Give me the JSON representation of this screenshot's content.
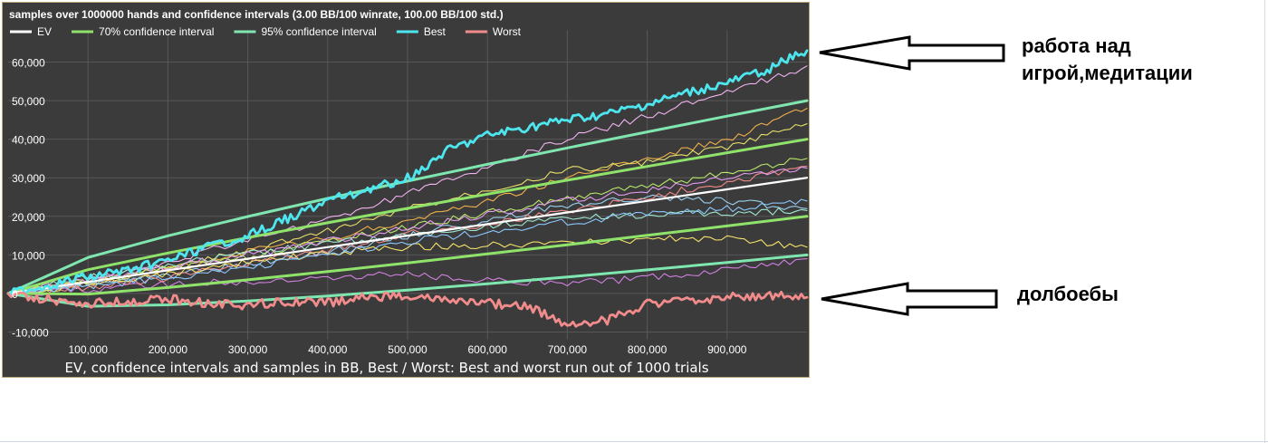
{
  "chart_data": {
    "type": "line",
    "title": "samples over 1000000 hands and confidence intervals (3.00 BB/100 winrate, 100.00 BB/100 std.)",
    "subtitle": "EV, confidence intervals and samples in BB, Best / Worst: Best and worst run out of 1000 trials",
    "xlabel": "",
    "ylabel": "",
    "xlim": [
      0,
      1000000
    ],
    "ylim": [
      -12000,
      66000
    ],
    "x_ticks": [
      "100,000",
      "200,000",
      "300,000",
      "400,000",
      "500,000",
      "600,000",
      "700,000",
      "800,000",
      "900,000"
    ],
    "y_ticks": [
      "-10,000",
      "0",
      "10,000",
      "20,000",
      "30,000",
      "40,000",
      "50,000",
      "60,000"
    ],
    "grid": true,
    "legend_position": "top-left",
    "winrate_bb_per_100": 3.0,
    "std_bb_per_100": 100.0,
    "legend": [
      {
        "name": "EV",
        "color": "#ffffff"
      },
      {
        "name": "70% confidence interval",
        "color": "#8fe36a"
      },
      {
        "name": "95% confidence interval",
        "color": "#7fe6b0"
      },
      {
        "name": "Best",
        "color": "#4de6ef"
      },
      {
        "name": "Worst",
        "color": "#f28c8c"
      }
    ],
    "series": [
      {
        "name": "EV",
        "x": [
          0,
          100000,
          200000,
          300000,
          400000,
          500000,
          600000,
          700000,
          800000,
          900000,
          1000000
        ],
        "values": [
          0,
          3000,
          6000,
          9000,
          12000,
          15000,
          18000,
          21000,
          24000,
          27000,
          30000
        ]
      },
      {
        "name": "70% confidence interval",
        "x": [
          0,
          100000,
          200000,
          300000,
          400000,
          500000,
          600000,
          700000,
          800000,
          900000,
          1000000
        ],
        "values": [
          0,
          6162,
          10472,
          14477,
          18325,
          22071,
          25746,
          29368,
          32944,
          36487,
          40000
        ]
      },
      {
        "name": "70% confidence interval",
        "x": [
          0,
          100000,
          200000,
          300000,
          400000,
          500000,
          600000,
          700000,
          800000,
          900000,
          1000000
        ],
        "values": [
          0,
          -162,
          1528,
          3523,
          5675,
          7929,
          10254,
          12632,
          15056,
          17513,
          20000
        ]
      },
      {
        "name": "95% confidence interval",
        "x": [
          0,
          100000,
          200000,
          300000,
          400000,
          500000,
          600000,
          700000,
          800000,
          900000,
          1000000
        ],
        "values": [
          0,
          9324,
          14944,
          19954,
          24650,
          29142,
          33492,
          37736,
          41888,
          45974,
          50000
        ]
      },
      {
        "name": "95% confidence interval",
        "x": [
          0,
          100000,
          200000,
          300000,
          400000,
          500000,
          600000,
          700000,
          800000,
          900000,
          1000000
        ],
        "values": [
          0,
          -3324,
          -2944,
          -1954,
          -650,
          858,
          2508,
          4264,
          6112,
          8026,
          10000
        ]
      },
      {
        "name": "Best",
        "x": [
          0,
          50000,
          100000,
          150000,
          200000,
          250000,
          300000,
          350000,
          400000,
          450000,
          500000,
          550000,
          600000,
          650000,
          700000,
          750000,
          800000,
          850000,
          900000,
          950000,
          1000000
        ],
        "values": [
          0,
          2000,
          4500,
          6000,
          8500,
          12000,
          15000,
          19500,
          24000,
          27000,
          30000,
          37000,
          41000,
          43000,
          45000,
          46500,
          49000,
          52000,
          54500,
          58000,
          63000
        ]
      },
      {
        "name": "Worst",
        "x": [
          0,
          50000,
          100000,
          150000,
          200000,
          250000,
          300000,
          350000,
          400000,
          450000,
          500000,
          550000,
          600000,
          650000,
          700000,
          750000,
          800000,
          850000,
          900000,
          950000,
          1000000
        ],
        "values": [
          0,
          -1500,
          -2500,
          -2000,
          -1500,
          -2500,
          -3000,
          -2000,
          -2500,
          -1000,
          -500,
          -2000,
          -2500,
          -3500,
          -8000,
          -7000,
          -2500,
          -2000,
          -1000,
          -500,
          -1000
        ]
      },
      {
        "name": "",
        "color": "#f2b3f0",
        "x": [
          0,
          100000,
          200000,
          300000,
          400000,
          500000,
          600000,
          700000,
          800000,
          900000,
          1000000
        ],
        "values": [
          0,
          3500,
          8000,
          14000,
          19000,
          26000,
          33000,
          40000,
          46000,
          52000,
          59000
        ]
      },
      {
        "name": "",
        "color": "#f0b04a",
        "x": [
          0,
          100000,
          200000,
          300000,
          400000,
          500000,
          600000,
          700000,
          800000,
          900000,
          1000000
        ],
        "values": [
          0,
          3000,
          6000,
          11000,
          14000,
          19000,
          24000,
          30000,
          35000,
          40000,
          48000
        ]
      },
      {
        "name": "",
        "color": "#e8e06a",
        "x": [
          0,
          100000,
          200000,
          300000,
          400000,
          500000,
          600000,
          700000,
          800000,
          900000,
          1000000
        ],
        "values": [
          0,
          2500,
          7000,
          11000,
          16000,
          22000,
          27000,
          32000,
          34000,
          38000,
          44000
        ]
      },
      {
        "name": "",
        "color": "#b9e86a",
        "x": [
          0,
          100000,
          200000,
          300000,
          400000,
          500000,
          600000,
          700000,
          800000,
          900000,
          1000000
        ],
        "values": [
          0,
          3000,
          6500,
          9500,
          13500,
          17000,
          21000,
          24500,
          28000,
          31000,
          35000
        ]
      },
      {
        "name": "",
        "color": "#9ad0f0",
        "x": [
          0,
          100000,
          200000,
          300000,
          400000,
          500000,
          600000,
          700000,
          800000,
          900000,
          1000000
        ],
        "values": [
          0,
          2000,
          4500,
          7500,
          11000,
          15000,
          19000,
          23000,
          25000,
          24000,
          22000
        ]
      },
      {
        "name": "",
        "color": "#d080e0",
        "x": [
          0,
          100000,
          200000,
          300000,
          400000,
          500000,
          600000,
          700000,
          800000,
          900000,
          1000000
        ],
        "values": [
          0,
          1000,
          2500,
          3000,
          4000,
          5000,
          3500,
          2500,
          4000,
          6000,
          9000
        ]
      },
      {
        "name": "",
        "color": "#f08a8a",
        "x": [
          0,
          100000,
          200000,
          300000,
          400000,
          500000,
          600000,
          700000,
          800000,
          900000,
          1000000
        ],
        "values": [
          0,
          1500,
          4000,
          8000,
          11000,
          15500,
          18000,
          21500,
          25000,
          29000,
          33000
        ]
      },
      {
        "name": "",
        "color": "#a0e8d0",
        "x": [
          0,
          100000,
          200000,
          300000,
          400000,
          500000,
          600000,
          700000,
          800000,
          900000,
          1000000
        ],
        "values": [
          0,
          4000,
          7500,
          10500,
          13000,
          15000,
          17500,
          19500,
          20500,
          21000,
          21500
        ]
      },
      {
        "name": "",
        "color": "#f7e36a",
        "x": [
          0,
          100000,
          200000,
          300000,
          400000,
          500000,
          600000,
          700000,
          800000,
          900000,
          1000000
        ],
        "values": [
          0,
          2500,
          5000,
          8000,
          10500,
          12000,
          12500,
          13000,
          14000,
          14500,
          12000
        ]
      },
      {
        "name": "",
        "color": "#e59af0",
        "x": [
          0,
          100000,
          200000,
          300000,
          400000,
          500000,
          600000,
          700000,
          800000,
          900000,
          1000000
        ],
        "values": [
          0,
          3500,
          7000,
          10000,
          13500,
          17000,
          20500,
          24000,
          27000,
          30000,
          32500
        ]
      },
      {
        "name": "",
        "color": "#8cc8ff",
        "x": [
          0,
          100000,
          200000,
          300000,
          400000,
          500000,
          600000,
          700000,
          800000,
          900000,
          1000000
        ],
        "values": [
          0,
          2000,
          4000,
          6500,
          10000,
          13500,
          16000,
          18500,
          20500,
          22000,
          24000
        ]
      }
    ]
  },
  "annotations": {
    "top_label_line1": "работа над",
    "top_label_line2": "игрой,медитации",
    "bottom_label": "долбоебы"
  }
}
